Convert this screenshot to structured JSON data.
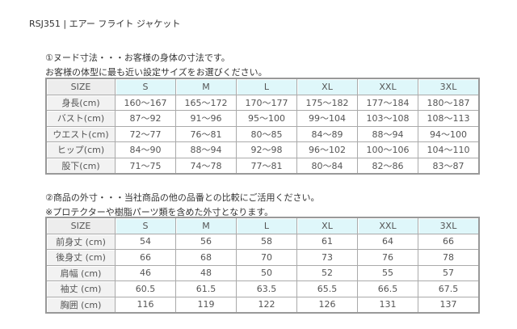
{
  "title": "RSJ351 | エアー フライト ジャケット",
  "section1": {
    "heading": "①ヌード寸法・・・お客様の身体の寸法です。",
    "note": "お客様の体型に最も近い設定サイズをお選びください。",
    "headers": [
      "SIZE",
      "S",
      "M",
      "L",
      "XL",
      "XXL",
      "3XL"
    ],
    "rows": [
      [
        "身長(cm)",
        "160～167",
        "165～172",
        "170～177",
        "175～182",
        "177～184",
        "180～187"
      ],
      [
        "バスト(cm)",
        "87～92",
        "91～96",
        "95～100",
        "99～104",
        "103～108",
        "108～113"
      ],
      [
        "ウエスト(cm)",
        "72～77",
        "76～81",
        "80～85",
        "84～89",
        "88～94",
        "94～100"
      ],
      [
        "ヒップ(cm)",
        "84～90",
        "88～94",
        "92～98",
        "96～102",
        "100～106",
        "104～110"
      ],
      [
        "股下(cm)",
        "71～75",
        "74～78",
        "77～81",
        "80～84",
        "82～86",
        "83～87"
      ]
    ]
  },
  "section2": {
    "heading": "②商品の外寸・・・当社商品の他の品番との比較にご活用ください。",
    "note": "※プロテクターや樹脂パーツ類を含めた外寸となります。",
    "headers": [
      "SIZE",
      "S",
      "M",
      "L",
      "XL",
      "XXL",
      "3XL"
    ],
    "rows": [
      [
        "前身丈 (cm)",
        "54",
        "56",
        "58",
        "61",
        "64",
        "66"
      ],
      [
        "後身丈 (cm)",
        "66",
        "68",
        "70",
        "73",
        "76",
        "78"
      ],
      [
        "肩幅 (cm)",
        "46",
        "48",
        "50",
        "52",
        "55",
        "57"
      ],
      [
        "袖丈 (cm)",
        "60.5",
        "61.5",
        "63.5",
        "65.5",
        "66.5",
        "67.5"
      ],
      [
        "胸囲 (cm)",
        "116",
        "119",
        "122",
        "126",
        "131",
        "137"
      ]
    ]
  }
}
